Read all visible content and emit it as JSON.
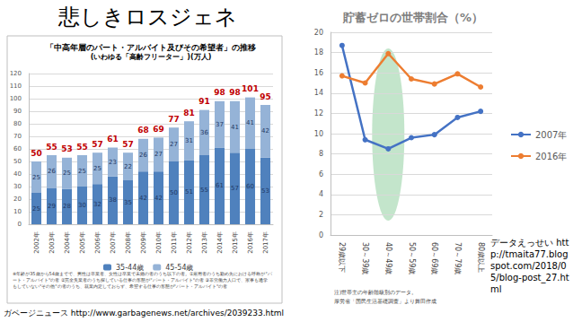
{
  "title": "悲しきロスジェネ",
  "chart_data": [
    {
      "type": "bar",
      "title": "「中高年層のパート・アルバイト及びその希望者」の推移",
      "subtitle": "(いわゆる「高齢フリーター」)(万人)",
      "categories": [
        "2002年",
        "2003年",
        "2004年",
        "2005年",
        "2006年",
        "2007年",
        "2008年",
        "2009年",
        "2010年",
        "2011年",
        "2012年",
        "2013年",
        "2014年",
        "2015年",
        "2016年",
        "2017年"
      ],
      "series": [
        {
          "name": "35-44歳",
          "color": "#4f81bd",
          "values": [
            25,
            29,
            28,
            30,
            32,
            38,
            35,
            42,
            42,
            50,
            51,
            55,
            61,
            57,
            60,
            53
          ]
        },
        {
          "name": "45-54歳",
          "color": "#95b3d7",
          "values": [
            25,
            26,
            25,
            25,
            25,
            23,
            22,
            26,
            27,
            27,
            31,
            36,
            37,
            41,
            41,
            42
          ]
        }
      ],
      "totals": [
        50,
        55,
        53,
        55,
        57,
        61,
        57,
        68,
        69,
        77,
        81,
        91,
        98,
        98,
        101,
        95
      ],
      "stacked": true,
      "data_labels": true,
      "ylim": [
        0,
        120
      ],
      "yticks": [
        0,
        10,
        20,
        30,
        40,
        50,
        60,
        70,
        80,
        90,
        100,
        110,
        120
      ],
      "grid": true,
      "legend": "bottom",
      "annotations": [
        "※年齢が35歳から54歳までで、男性は卒業者、女性は卒業で未婚の者のうち以下の者。①雇用者のうち勤め先における呼称が\"パート・アルバイト\"の者 ②完全失業者のうち探している仕事の形態が\"パート・アルバイト\"の者 ③非労働力人口で、家事も通学もしていない\"その他\"の者のうち、就業内定しておらず、希望する仕事の形態が\"パート・アルバイト\"の者",
        "ガベージニュース http://www.garbagenews.net/archives/2039233.html"
      ]
    },
    {
      "type": "line",
      "title": "貯蓄ゼロの世帯割合（%）",
      "categories": [
        "29歳以下",
        "30～39歳",
        "40～49歳",
        "50～59歳",
        "60～69歳",
        "70～79歳",
        "80歳以上"
      ],
      "series": [
        {
          "name": "2007年",
          "color": "#4472c4",
          "values": [
            18.7,
            9.4,
            8.5,
            9.6,
            9.9,
            11.6,
            12.2
          ]
        },
        {
          "name": "2016年",
          "color": "#ed7d31",
          "values": [
            15.7,
            15.0,
            17.9,
            15.4,
            14.9,
            15.9,
            14.6
          ]
        }
      ],
      "marker": "circle",
      "ylim": [
        0,
        20
      ],
      "yticks": [
        0,
        2,
        4,
        6,
        8,
        10,
        12,
        14,
        16,
        18,
        20
      ],
      "grid": true,
      "legend": "right",
      "annotations": [
        "注)世帯主の年齢階級別のデータ。",
        "厚労省「国民生活基礎調査」より舞田作成",
        "データえっせい http://tmaita77.blogspot.com/2018/05/blog-post_27.html"
      ]
    }
  ]
}
